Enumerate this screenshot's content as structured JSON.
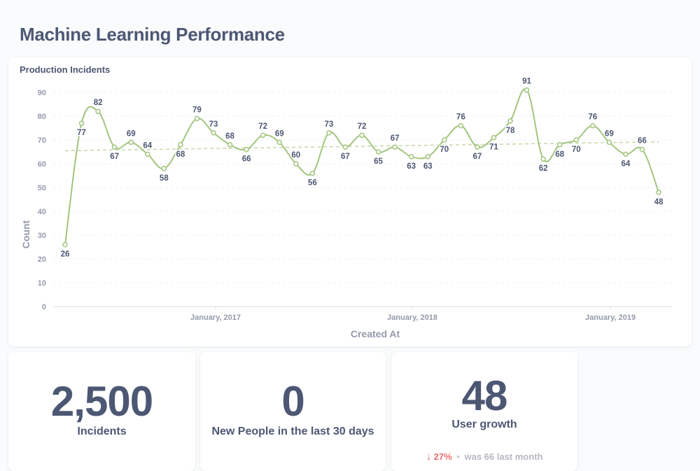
{
  "dashboard": {
    "title": "Machine Learning Performance"
  },
  "chart_card": {
    "title": "Production Incidents"
  },
  "chart_data": {
    "type": "line",
    "title": "Production Incidents",
    "xlabel": "Created At",
    "ylabel": "Count",
    "ylim": [
      0,
      90
    ],
    "yticks": [
      0,
      10,
      20,
      30,
      40,
      50,
      60,
      70,
      80,
      90
    ],
    "x_tick_labels": [
      "January, 2017",
      "January, 2018",
      "January, 2019"
    ],
    "grid": true,
    "legend": "none",
    "series": [
      {
        "values": [
          26,
          77,
          82,
          67,
          69,
          64,
          58,
          68,
          79,
          73,
          68,
          66,
          72,
          69,
          60,
          56,
          73,
          67,
          72,
          65,
          67,
          63,
          63,
          70,
          76,
          67,
          71,
          78,
          91,
          62,
          68,
          70,
          76,
          69,
          64,
          66,
          48
        ],
        "color": "#a2c57e"
      }
    ],
    "trendline": {
      "start": 65.5,
      "end": 69.2,
      "color": "#c3d9a8",
      "style": "dashed"
    }
  },
  "scalars": [
    {
      "value": "2,500",
      "label": "Incidents"
    },
    {
      "value": "0",
      "label": "New People in the last 30 days"
    },
    {
      "value": "48",
      "label": "User growth",
      "trend": {
        "direction": "down",
        "arrow": "↓",
        "percent": "27%",
        "separator": "•",
        "comparison": "was 66  last month",
        "color": "#ed6e6e"
      }
    }
  ]
}
